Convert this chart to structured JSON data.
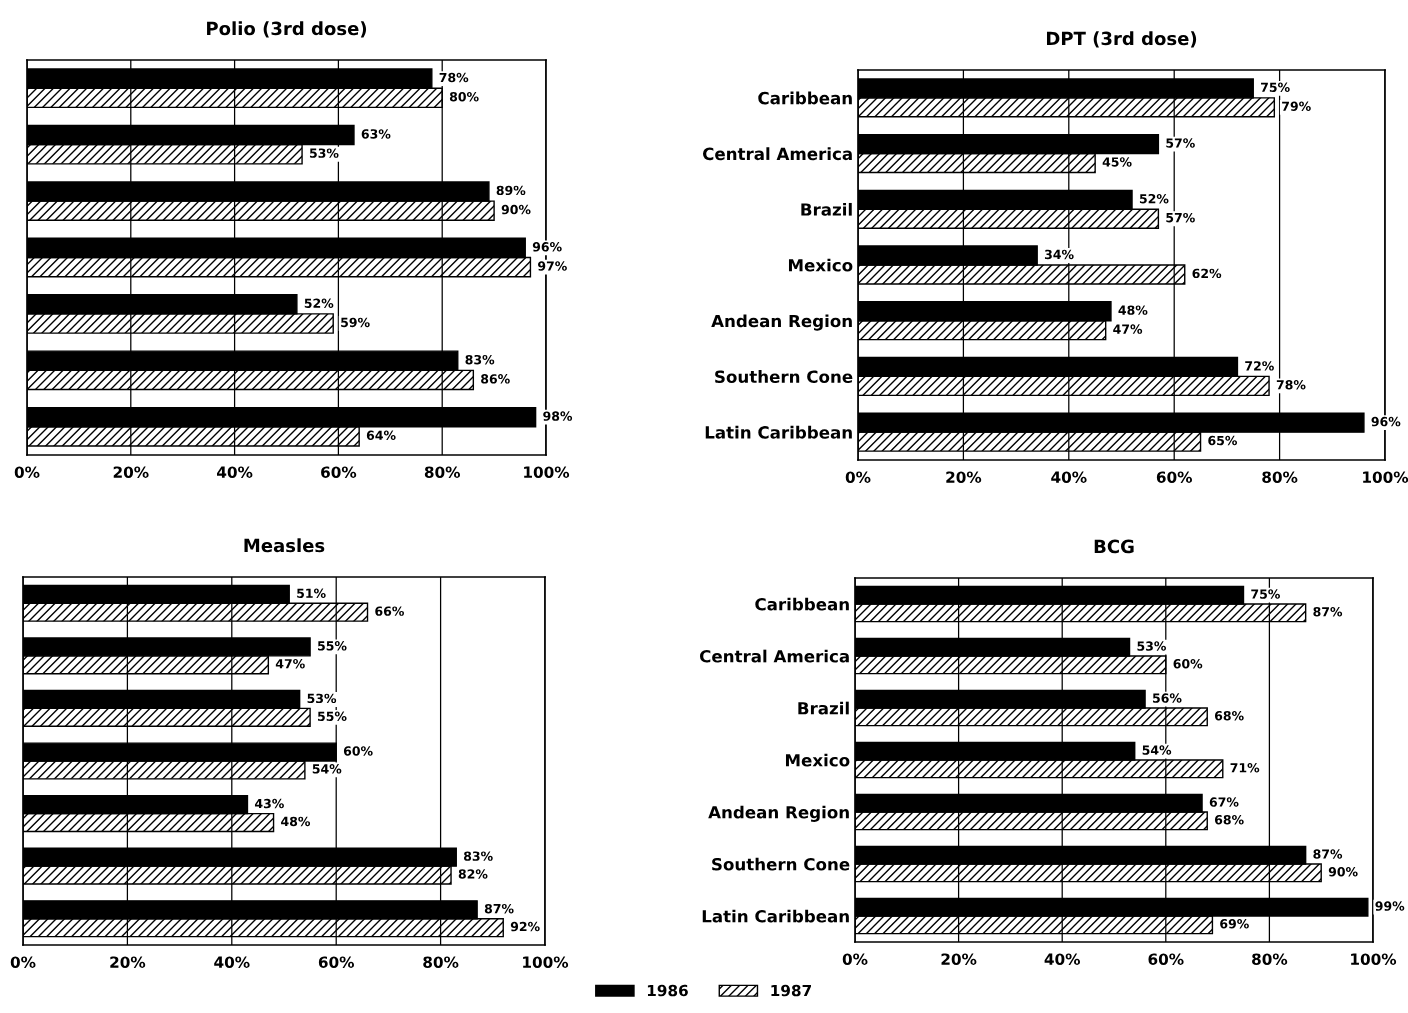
{
  "chart_data": [
    {
      "type": "bar",
      "orientation": "horizontal",
      "title": "Polio (3rd dose)",
      "legend": "bottom",
      "categories": [
        null,
        null,
        null,
        null,
        null,
        null,
        null
      ],
      "tick_labels": "x",
      "xlim": [
        0,
        100
      ],
      "xticks": [
        {
          "value": 0,
          "label": "0%"
        },
        {
          "value": 20,
          "label": "20%"
        },
        {
          "value": 40,
          "label": "40%"
        },
        {
          "value": 60,
          "label": "60%"
        },
        {
          "value": 80,
          "label": "80%"
        },
        {
          "value": 100,
          "label": "100%"
        }
      ],
      "grid": "x",
      "series": [
        {
          "name": "1986",
          "color": "#000000",
          "values": [
            78,
            63,
            89,
            96,
            52,
            83,
            98
          ],
          "value_labels": [
            "78%",
            "63%",
            "89%",
            "96%",
            "52%",
            "83%",
            "98%"
          ]
        },
        {
          "name": "1987",
          "color": "#000000",
          "values": [
            80,
            53,
            90,
            97,
            59,
            86,
            64
          ],
          "value_labels": [
            "80%",
            "53%",
            "90%",
            "97%",
            "59%",
            "86%",
            "64%"
          ]
        }
      ]
    },
    {
      "type": "bar",
      "orientation": "horizontal",
      "title": "DPT (3rd dose)",
      "categories": [
        "Caribbean",
        "Central America",
        "Brazil",
        "Mexico",
        "Andean Region",
        "Southern Cone",
        "Latin Caribbean"
      ],
      "xlim": [
        0,
        100
      ],
      "xticks": [
        {
          "value": 0,
          "label": "0%"
        },
        {
          "value": 20,
          "label": "20%"
        },
        {
          "value": 40,
          "label": "40%"
        },
        {
          "value": 60,
          "label": "60%"
        },
        {
          "value": 80,
          "label": "80%"
        },
        {
          "value": 100,
          "label": "100%"
        }
      ],
      "grid": "x",
      "series": [
        {
          "name": "1986",
          "color": "#000000",
          "values": [
            75,
            57,
            52,
            34,
            48,
            72,
            96
          ],
          "value_labels": [
            "75%",
            "57%",
            "52%",
            "34%",
            "48%",
            "72%",
            "96%"
          ]
        },
        {
          "name": "1987",
          "color": "#000000",
          "values": [
            79,
            45,
            57,
            62,
            47,
            78,
            65
          ],
          "value_labels": [
            "79%",
            "45%",
            "57%",
            "62%",
            "47%",
            "78%",
            "65%"
          ]
        }
      ]
    },
    {
      "type": "bar",
      "orientation": "horizontal",
      "title": "Measles",
      "categories": [
        null,
        null,
        null,
        null,
        null,
        null,
        null
      ],
      "tick_labels": "x",
      "xlim": [
        0,
        100
      ],
      "xticks": [
        {
          "value": 0,
          "label": "0%"
        },
        {
          "value": 20,
          "label": "20%"
        },
        {
          "value": 40,
          "label": "40%"
        },
        {
          "value": 60,
          "label": "60%"
        },
        {
          "value": 80,
          "label": "80%"
        },
        {
          "value": 100,
          "label": "100%"
        }
      ],
      "grid": "x",
      "series": [
        {
          "name": "1986",
          "color": "#000000",
          "values": [
            51,
            55,
            53,
            60,
            43,
            83,
            87
          ],
          "value_labels": [
            "51%",
            "55%",
            "53%",
            "60%",
            "43%",
            "83%",
            "87%"
          ]
        },
        {
          "name": "1987",
          "color": "#000000",
          "values": [
            66,
            47,
            55,
            54,
            48,
            82,
            92
          ],
          "value_labels": [
            "66%",
            "47%",
            "55%",
            "54%",
            "48%",
            "82%",
            "92%"
          ]
        }
      ]
    },
    {
      "type": "bar",
      "orientation": "horizontal",
      "title": "BCG",
      "categories": [
        "Caribbean",
        "Central America",
        "Brazil",
        "Mexico",
        "Andean Region",
        "Southern Cone",
        "Latin Caribbean"
      ],
      "xlim": [
        0,
        100
      ],
      "xticks": [
        {
          "value": 0,
          "label": "0%"
        },
        {
          "value": 20,
          "label": "20%"
        },
        {
          "value": 40,
          "label": "40%"
        },
        {
          "value": 60,
          "label": "60%"
        },
        {
          "value": 80,
          "label": "80%"
        },
        {
          "value": 100,
          "label": "100%"
        }
      ],
      "grid": "x",
      "series": [
        {
          "name": "1986",
          "color": "#000000",
          "values": [
            75,
            53,
            56,
            54,
            67,
            87,
            99
          ],
          "value_labels": [
            "75%",
            "53%",
            "56%",
            "54%",
            "67%",
            "87%",
            "99%"
          ]
        },
        {
          "name": "1987",
          "color": "#000000",
          "values": [
            87,
            60,
            68,
            71,
            68,
            90,
            69
          ],
          "value_labels": [
            "87%",
            "60%",
            "68%",
            "71%",
            "68%",
            "90%",
            "69%"
          ]
        }
      ]
    }
  ]
}
